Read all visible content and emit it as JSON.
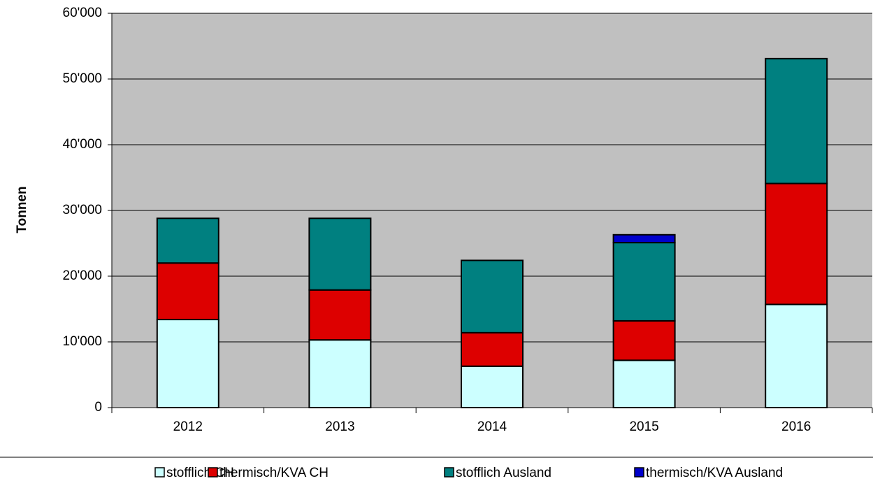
{
  "chart_data": {
    "type": "stacked_bar",
    "y_label": "Tonnen",
    "categories": [
      "2012",
      "2013",
      "2014",
      "2015",
      "2016"
    ],
    "series": [
      {
        "name": "stofflich CH",
        "color": "#ccffff",
        "values": [
          13400,
          10300,
          6300,
          7200,
          15700
        ]
      },
      {
        "name": "thermisch/KVA CH",
        "color": "#dd0000",
        "values": [
          8600,
          7600,
          5100,
          6000,
          18400
        ]
      },
      {
        "name": "stofflich Ausland",
        "color": "#008080",
        "values": [
          6800,
          10900,
          11000,
          11900,
          19000
        ]
      },
      {
        "name": "thermisch/KVA Ausland",
        "color": "#0000cc",
        "values": [
          0,
          0,
          0,
          1200,
          0
        ]
      }
    ],
    "ylim": [
      0,
      60000
    ],
    "yticks": [
      0,
      {
        "value": 10000,
        "label": "10'000"
      },
      {
        "value": 20000,
        "label": "20'000"
      },
      {
        "value": 30000,
        "label": "30'000"
      },
      {
        "value": 40000,
        "label": "40'000"
      },
      {
        "value": 50000,
        "label": "50'000"
      },
      {
        "value": 60000,
        "label": "60'000"
      }
    ],
    "grid": true,
    "legend": "bottom",
    "background": "#c0c0c0"
  }
}
